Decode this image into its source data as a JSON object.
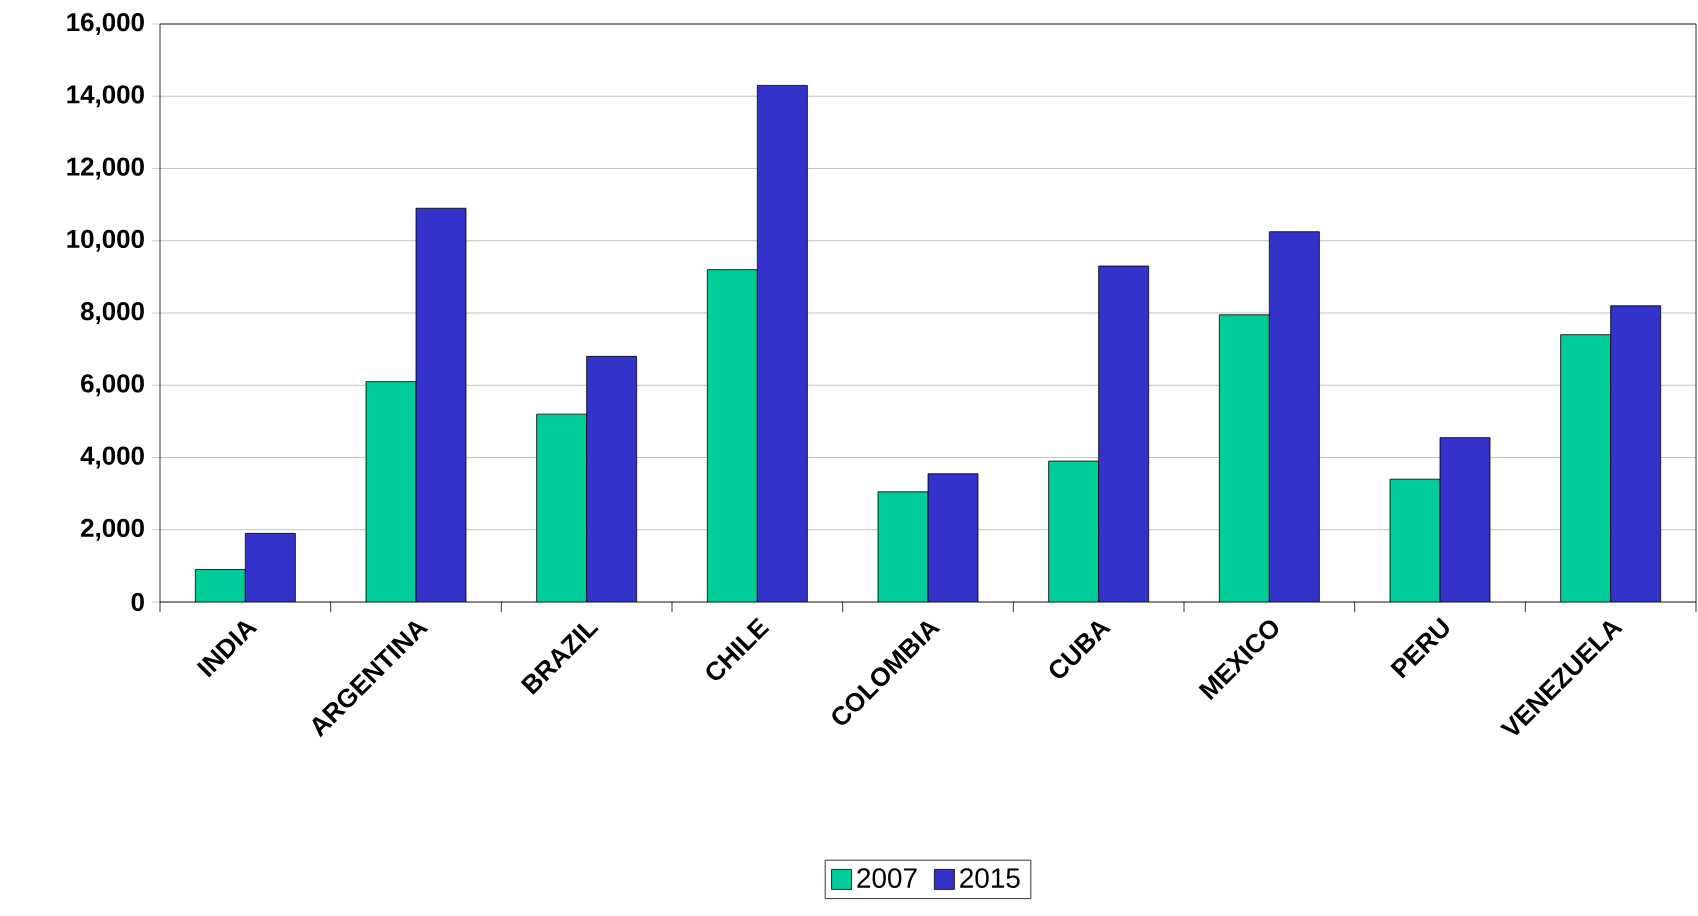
{
  "chart_data": {
    "type": "bar",
    "categories": [
      "INDIA",
      "ARGENTINA",
      "BRAZIL",
      "CHILE",
      "COLOMBIA",
      "CUBA",
      "MEXICO",
      "PERU",
      "VENEZUELA"
    ],
    "series": [
      {
        "name": "2007",
        "color": "#00cc99",
        "values": [
          900,
          6100,
          5200,
          9200,
          3050,
          3900,
          7950,
          3400,
          7400
        ]
      },
      {
        "name": "2015",
        "color": "#3333cc",
        "values": [
          1900,
          10900,
          6800,
          14300,
          3550,
          9300,
          10250,
          4550,
          8200
        ]
      }
    ],
    "ylim": [
      0,
      16000
    ],
    "yticks": [
      0,
      {
        "value": 2000,
        "label": "2,000"
      },
      {
        "value": 4000,
        "label": "4,000"
      },
      {
        "value": 6000,
        "label": "6,000"
      },
      {
        "value": 8000,
        "label": "8,000"
      },
      {
        "value": 10000,
        "label": "10,000"
      },
      {
        "value": 12000,
        "label": "12,000"
      },
      {
        "value": 14000,
        "label": "14,000"
      },
      {
        "value": 16000,
        "label": "16,000"
      }
    ],
    "grid": "y",
    "legend": "bottom"
  }
}
